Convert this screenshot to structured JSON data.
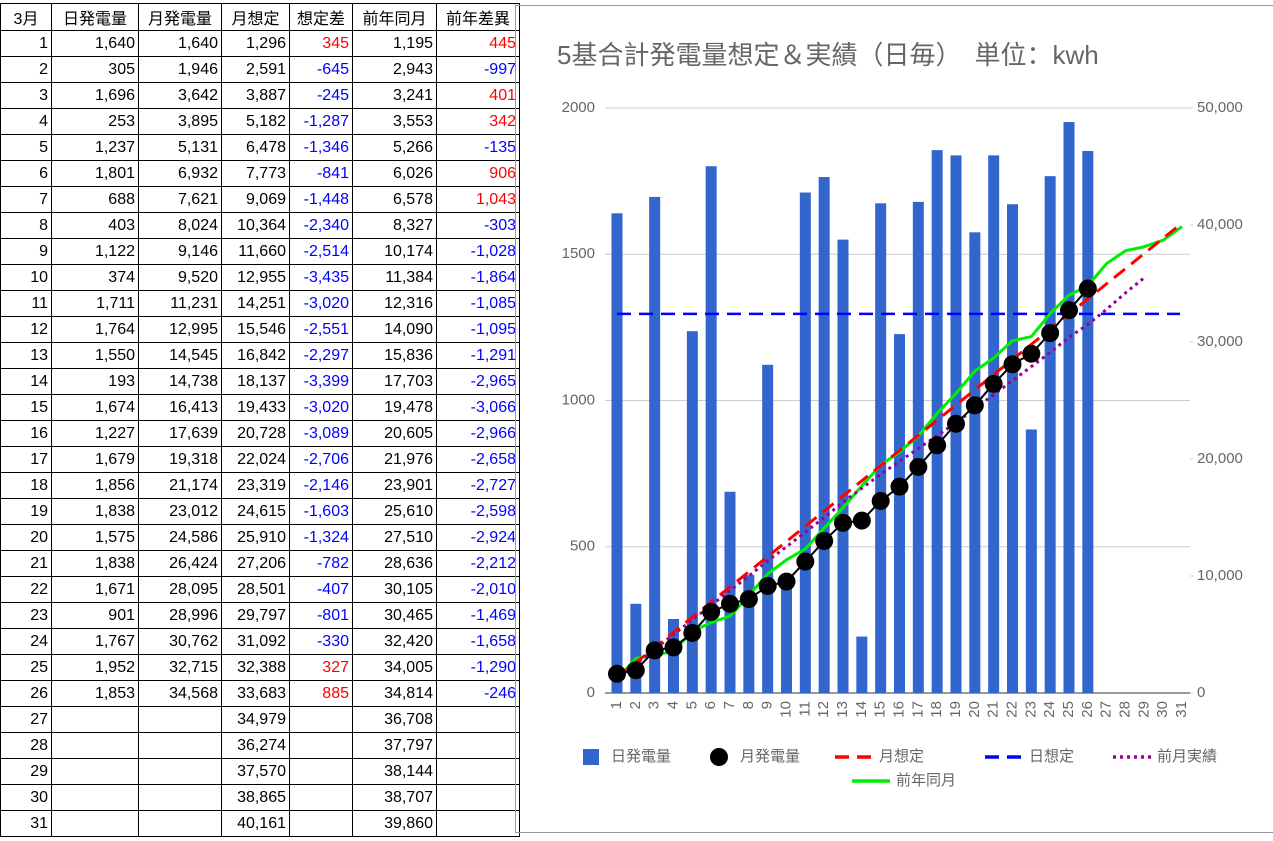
{
  "table": {
    "header": [
      "3月",
      "日発電量",
      "月発電量",
      "月想定",
      "想定差",
      "前年同月",
      "前年差異"
    ],
    "rows": [
      [
        "1",
        "1,640",
        "1,640",
        "1,296",
        "345",
        "1,195",
        "445"
      ],
      [
        "2",
        "305",
        "1,946",
        "2,591",
        "-645",
        "2,943",
        "-997"
      ],
      [
        "3",
        "1,696",
        "3,642",
        "3,887",
        "-245",
        "3,241",
        "401"
      ],
      [
        "4",
        "253",
        "3,895",
        "5,182",
        "-1,287",
        "3,553",
        "342"
      ],
      [
        "5",
        "1,237",
        "5,131",
        "6,478",
        "-1,346",
        "5,266",
        "-135"
      ],
      [
        "6",
        "1,801",
        "6,932",
        "7,773",
        "-841",
        "6,026",
        "906"
      ],
      [
        "7",
        "688",
        "7,621",
        "9,069",
        "-1,448",
        "6,578",
        "1,043"
      ],
      [
        "8",
        "403",
        "8,024",
        "10,364",
        "-2,340",
        "8,327",
        "-303"
      ],
      [
        "9",
        "1,122",
        "9,146",
        "11,660",
        "-2,514",
        "10,174",
        "-1,028"
      ],
      [
        "10",
        "374",
        "9,520",
        "12,955",
        "-3,435",
        "11,384",
        "-1,864"
      ],
      [
        "11",
        "1,711",
        "11,231",
        "14,251",
        "-3,020",
        "12,316",
        "-1,085"
      ],
      [
        "12",
        "1,764",
        "12,995",
        "15,546",
        "-2,551",
        "14,090",
        "-1,095"
      ],
      [
        "13",
        "1,550",
        "14,545",
        "16,842",
        "-2,297",
        "15,836",
        "-1,291"
      ],
      [
        "14",
        "193",
        "14,738",
        "18,137",
        "-3,399",
        "17,703",
        "-2,965"
      ],
      [
        "15",
        "1,674",
        "16,413",
        "19,433",
        "-3,020",
        "19,478",
        "-3,066"
      ],
      [
        "16",
        "1,227",
        "17,639",
        "20,728",
        "-3,089",
        "20,605",
        "-2,966"
      ],
      [
        "17",
        "1,679",
        "19,318",
        "22,024",
        "-2,706",
        "21,976",
        "-2,658"
      ],
      [
        "18",
        "1,856",
        "21,174",
        "23,319",
        "-2,146",
        "23,901",
        "-2,727"
      ],
      [
        "19",
        "1,838",
        "23,012",
        "24,615",
        "-1,603",
        "25,610",
        "-2,598"
      ],
      [
        "20",
        "1,575",
        "24,586",
        "25,910",
        "-1,324",
        "27,510",
        "-2,924"
      ],
      [
        "21",
        "1,838",
        "26,424",
        "27,206",
        "-782",
        "28,636",
        "-2,212"
      ],
      [
        "22",
        "1,671",
        "28,095",
        "28,501",
        "-407",
        "30,105",
        "-2,010"
      ],
      [
        "23",
        "901",
        "28,996",
        "29,797",
        "-801",
        "30,465",
        "-1,469"
      ],
      [
        "24",
        "1,767",
        "30,762",
        "31,092",
        "-330",
        "32,420",
        "-1,658"
      ],
      [
        "25",
        "1,952",
        "32,715",
        "32,388",
        "327",
        "34,005",
        "-1,290"
      ],
      [
        "26",
        "1,853",
        "34,568",
        "33,683",
        "885",
        "34,814",
        "-246"
      ],
      [
        "27",
        null,
        null,
        "34,979",
        null,
        "36,708",
        null
      ],
      [
        "28",
        null,
        null,
        "36,274",
        null,
        "37,797",
        null
      ],
      [
        "29",
        null,
        null,
        "37,570",
        null,
        "38,144",
        null
      ],
      [
        "30",
        null,
        null,
        "38,865",
        null,
        "38,707",
        null
      ],
      [
        "31",
        null,
        null,
        "40,161",
        null,
        "39,860",
        null
      ]
    ]
  },
  "chart_data": {
    "type": "combo",
    "title": "5基合計発電量想定＆実績（日毎）　単位：kwh",
    "categories": [
      "1",
      "2",
      "3",
      "4",
      "5",
      "6",
      "7",
      "8",
      "9",
      "10",
      "11",
      "12",
      "13",
      "14",
      "15",
      "16",
      "17",
      "18",
      "19",
      "20",
      "21",
      "22",
      "23",
      "24",
      "25",
      "26",
      "27",
      "28",
      "29",
      "30",
      "31"
    ],
    "ylim": [
      0,
      2000
    ],
    "yticks": [
      0,
      500,
      1000,
      1500,
      2000
    ],
    "y2lim": [
      0,
      50000
    ],
    "y2ticks": [
      0,
      {
        "value": 10000,
        "label": "10,000"
      },
      {
        "value": 20000,
        "label": "20,000"
      },
      {
        "value": 30000,
        "label": "30,000"
      },
      {
        "value": 40000,
        "label": "40,000"
      },
      {
        "value": 50000,
        "label": "50,000"
      }
    ],
    "grid": true,
    "legend": "bottom",
    "series": [
      {
        "name": "日発電量",
        "type": "bar",
        "color": "#3366cc",
        "axis": "y",
        "values": [
          1640,
          305,
          1696,
          253,
          1237,
          1801,
          688,
          403,
          1122,
          374,
          1711,
          1764,
          1550,
          193,
          1674,
          1227,
          1679,
          1856,
          1838,
          1575,
          1838,
          1671,
          901,
          1767,
          1952,
          1853,
          null,
          null,
          null,
          null,
          null
        ]
      },
      {
        "name": "月発電量",
        "type": "line",
        "marker": "circle",
        "color": "#000000",
        "axis": "y2",
        "values": [
          1640,
          1946,
          3642,
          3895,
          5131,
          6932,
          7621,
          8024,
          9146,
          9520,
          11231,
          12995,
          14545,
          14738,
          16413,
          17639,
          19318,
          21174,
          23012,
          24586,
          26424,
          28095,
          28996,
          30762,
          32715,
          34568,
          null,
          null,
          null,
          null,
          null
        ]
      },
      {
        "name": "月想定",
        "type": "line",
        "dash": "dashed",
        "color": "#ff0000",
        "axis": "y2",
        "values": [
          1296,
          2591,
          3887,
          5182,
          6478,
          7773,
          9069,
          10364,
          11660,
          12955,
          14251,
          15546,
          16842,
          18137,
          19433,
          20728,
          22024,
          23319,
          24615,
          25910,
          27206,
          28501,
          29797,
          31092,
          32388,
          33683,
          34979,
          36274,
          37570,
          38865,
          40161
        ]
      },
      {
        "name": "日想定",
        "type": "hline",
        "dash": "dashed",
        "color": "#0000ff",
        "axis": "y",
        "value": 1296
      },
      {
        "name": "前月実績",
        "type": "line",
        "dash": "dotted",
        "color": "#990099",
        "axis": "y2",
        "values": [
          1250,
          2500,
          3750,
          5000,
          6250,
          7500,
          8750,
          10000,
          11300,
          12500,
          13750,
          15000,
          16300,
          17500,
          18700,
          19800,
          20900,
          22000,
          23100,
          24300,
          25500,
          26700,
          27900,
          29100,
          30400,
          31500,
          32800,
          34200,
          35500,
          null,
          null
        ]
      },
      {
        "name": "前年同月",
        "type": "line",
        "color": "#00ee00",
        "axis": "y2",
        "values": [
          1195,
          2943,
          3241,
          3553,
          5266,
          6026,
          6578,
          8327,
          10174,
          11384,
          12316,
          14090,
          15836,
          17703,
          19478,
          20605,
          21976,
          23901,
          25610,
          27510,
          28636,
          30105,
          30465,
          32420,
          34005,
          34814,
          36708,
          37797,
          38144,
          38707,
          39860
        ]
      }
    ]
  }
}
